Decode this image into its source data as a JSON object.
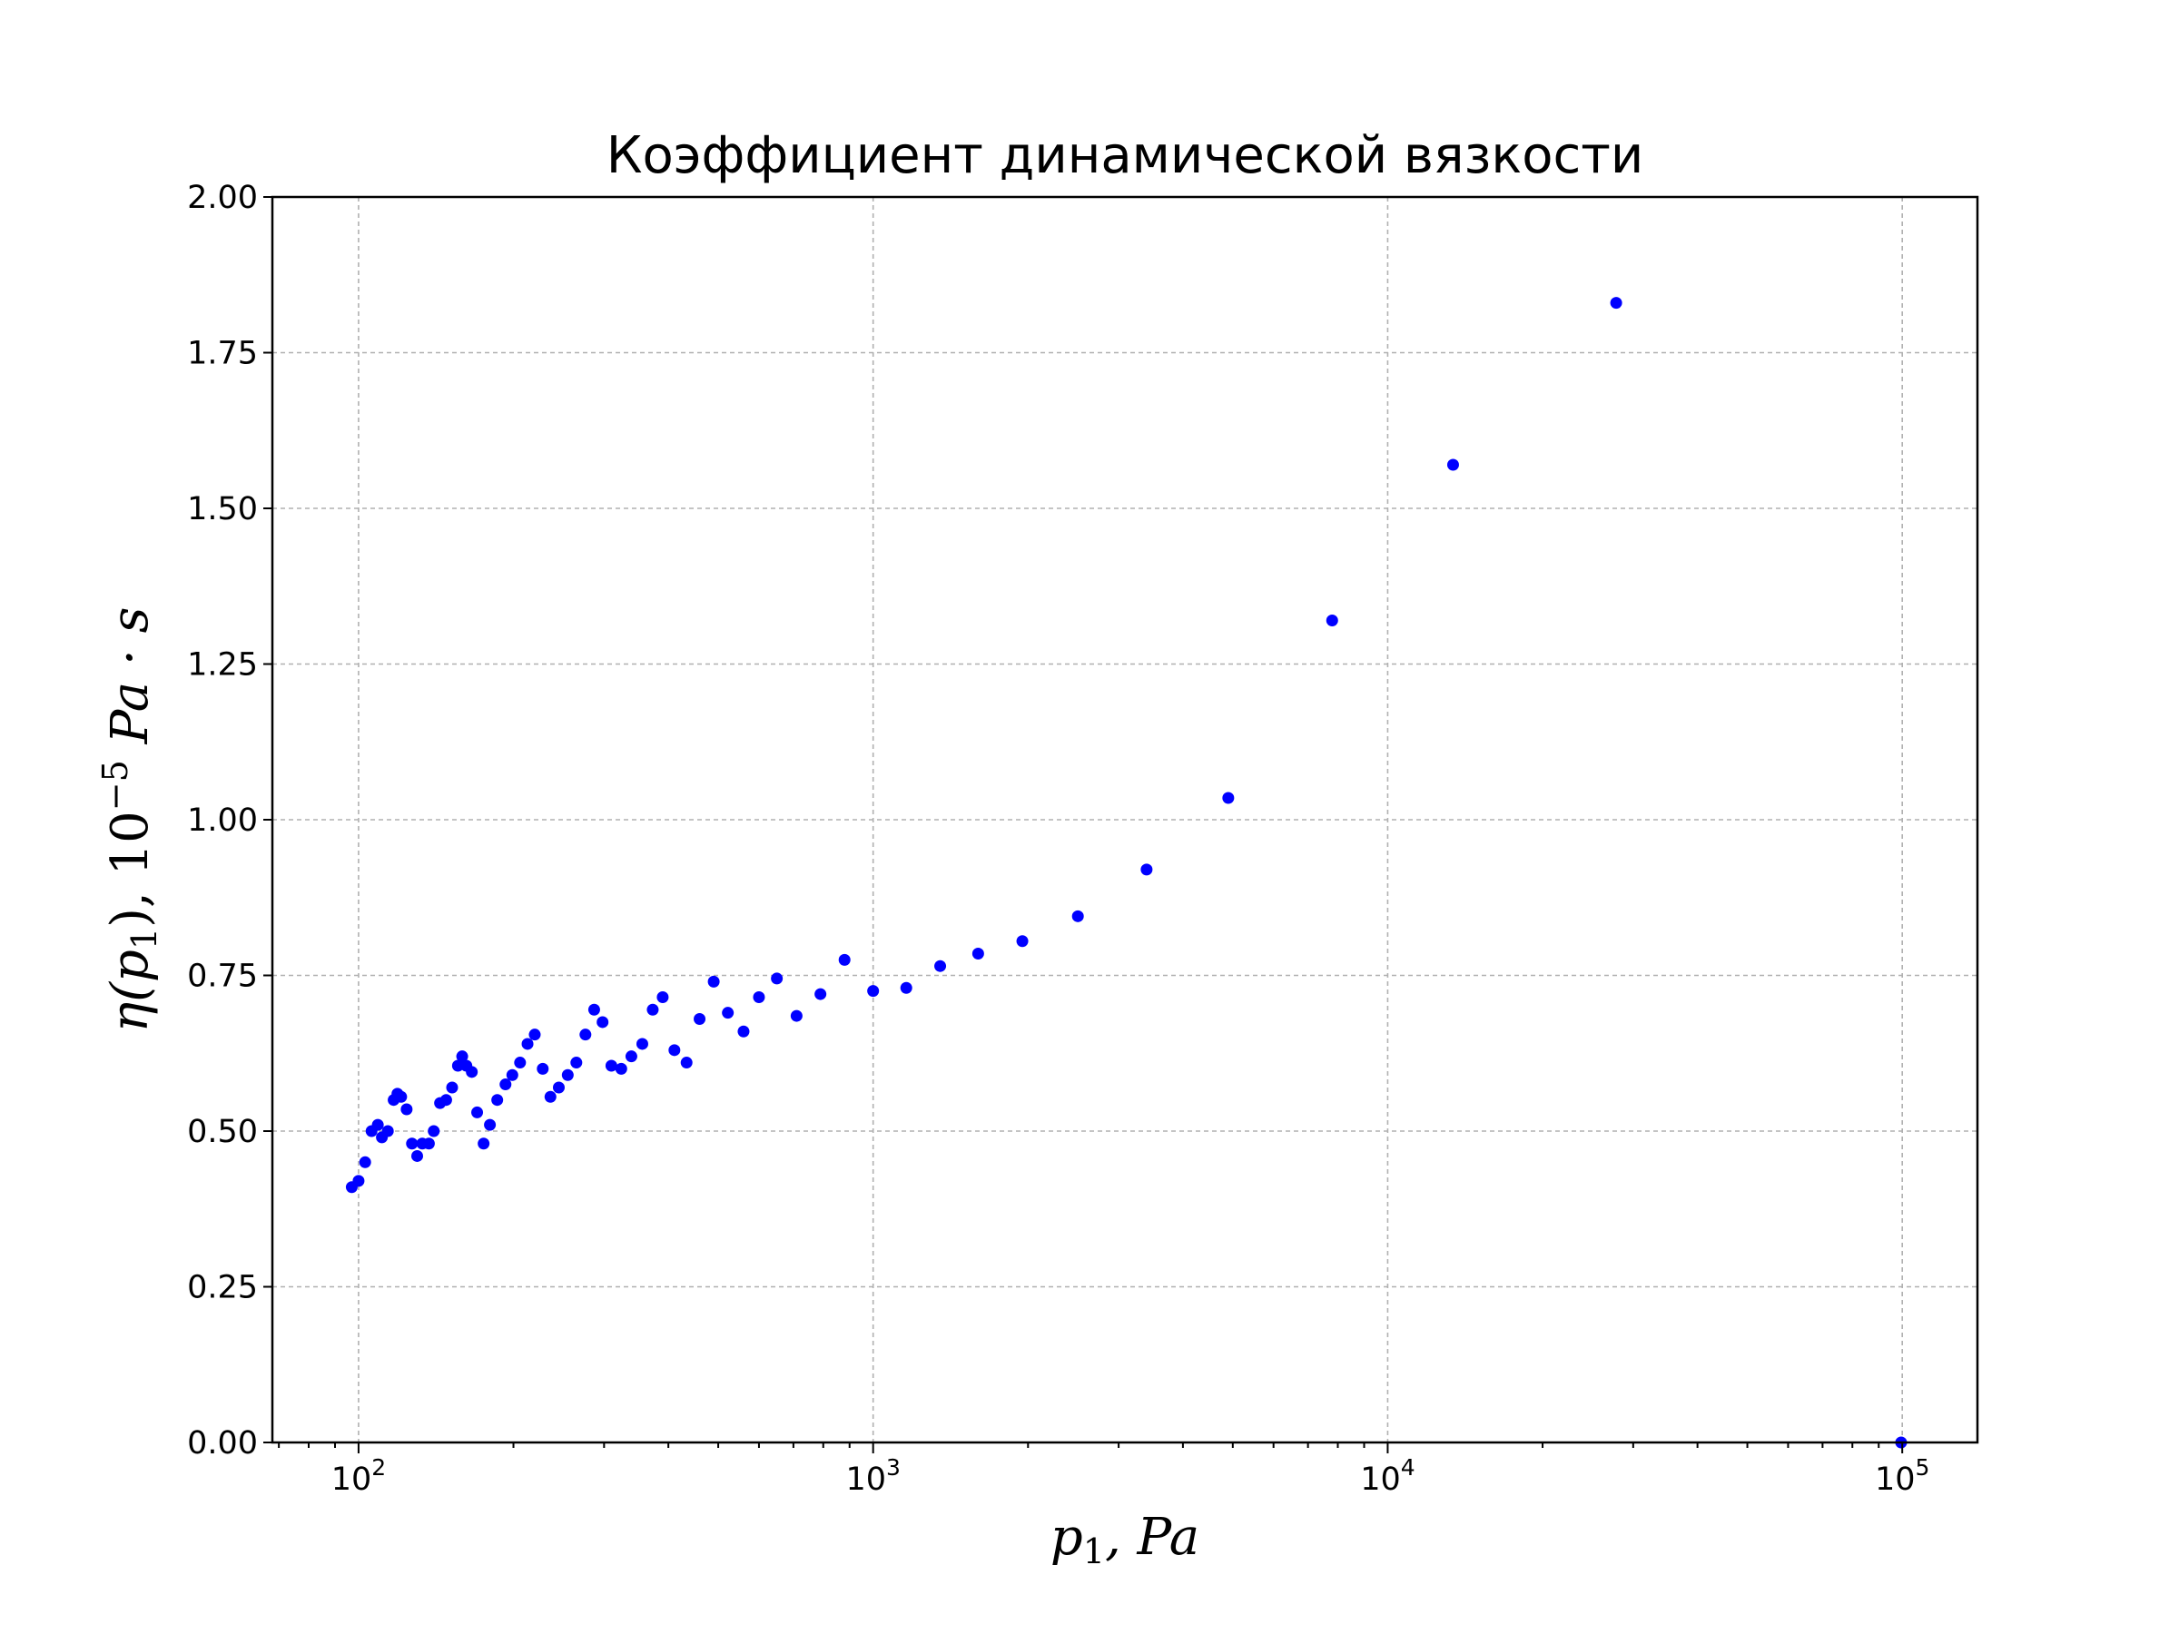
{
  "chart_data": {
    "type": "scatter",
    "title": "Коэффициент динамической вязкости",
    "xlabel_base": "p",
    "xlabel_sub": "1",
    "xlabel_unit": "Pa",
    "ylabel_main": "η(p",
    "ylabel_sub": "1",
    "ylabel_mid": "), 10",
    "ylabel_exp": "−5",
    "ylabel_unit": "Pa · s",
    "x_scale": "log",
    "xlim": [
      68,
      140000
    ],
    "ylim": [
      0,
      2.0
    ],
    "grid": true,
    "color": "#0000ff",
    "x_ticks": [
      {
        "value": 100,
        "base": "10",
        "exp": "2"
      },
      {
        "value": 1000,
        "base": "10",
        "exp": "3"
      },
      {
        "value": 10000,
        "base": "10",
        "exp": "4"
      },
      {
        "value": 100000,
        "base": "10",
        "exp": "5"
      }
    ],
    "y_ticks": [
      {
        "value": 0.0,
        "label": "0.00"
      },
      {
        "value": 0.25,
        "label": "0.25"
      },
      {
        "value": 0.5,
        "label": "0.50"
      },
      {
        "value": 0.75,
        "label": "0.75"
      },
      {
        "value": 1.0,
        "label": "1.00"
      },
      {
        "value": 1.25,
        "label": "1.25"
      },
      {
        "value": 1.5,
        "label": "1.50"
      },
      {
        "value": 1.75,
        "label": "1.75"
      },
      {
        "value": 2.0,
        "label": "2.00"
      }
    ],
    "points": [
      [
        97,
        0.41
      ],
      [
        100,
        0.42
      ],
      [
        103,
        0.45
      ],
      [
        106,
        0.5
      ],
      [
        109,
        0.51
      ],
      [
        111,
        0.49
      ],
      [
        114,
        0.5
      ],
      [
        117,
        0.55
      ],
      [
        119,
        0.56
      ],
      [
        121,
        0.555
      ],
      [
        124,
        0.535
      ],
      [
        127,
        0.48
      ],
      [
        130,
        0.46
      ],
      [
        133,
        0.48
      ],
      [
        137,
        0.48
      ],
      [
        140,
        0.5
      ],
      [
        144,
        0.545
      ],
      [
        148,
        0.55
      ],
      [
        152,
        0.57
      ],
      [
        156,
        0.605
      ],
      [
        159,
        0.62
      ],
      [
        162,
        0.605
      ],
      [
        166,
        0.595
      ],
      [
        170,
        0.53
      ],
      [
        175,
        0.48
      ],
      [
        180,
        0.51
      ],
      [
        186,
        0.55
      ],
      [
        193,
        0.575
      ],
      [
        199,
        0.59
      ],
      [
        206,
        0.61
      ],
      [
        213,
        0.64
      ],
      [
        220,
        0.655
      ],
      [
        228,
        0.6
      ],
      [
        236,
        0.555
      ],
      [
        245,
        0.57
      ],
      [
        255,
        0.59
      ],
      [
        265,
        0.61
      ],
      [
        276,
        0.655
      ],
      [
        287,
        0.695
      ],
      [
        298,
        0.675
      ],
      [
        310,
        0.605
      ],
      [
        324,
        0.6
      ],
      [
        339,
        0.62
      ],
      [
        356,
        0.64
      ],
      [
        373,
        0.695
      ],
      [
        390,
        0.715
      ],
      [
        411,
        0.63
      ],
      [
        434,
        0.61
      ],
      [
        460,
        0.68
      ],
      [
        490,
        0.74
      ],
      [
        522,
        0.69
      ],
      [
        560,
        0.66
      ],
      [
        600,
        0.715
      ],
      [
        650,
        0.745
      ],
      [
        710,
        0.685
      ],
      [
        790,
        0.72
      ],
      [
        880,
        0.775
      ],
      [
        1000,
        0.725
      ],
      [
        1160,
        0.73
      ],
      [
        1350,
        0.765
      ],
      [
        1600,
        0.785
      ],
      [
        1950,
        0.805
      ],
      [
        2500,
        0.845
      ],
      [
        3400,
        0.92
      ],
      [
        4900,
        1.035
      ],
      [
        7800,
        1.32
      ],
      [
        13400,
        1.57
      ],
      [
        27800,
        1.83
      ],
      [
        99500,
        0.0
      ]
    ]
  }
}
